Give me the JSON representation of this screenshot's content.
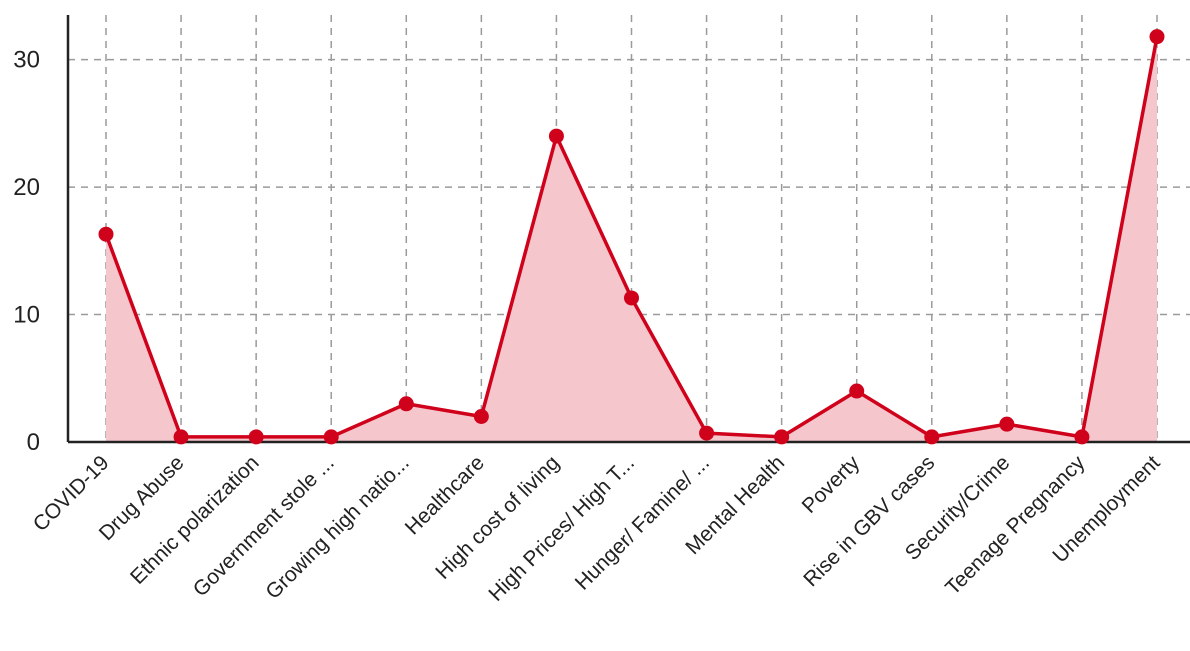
{
  "chart_data": {
    "type": "area",
    "categories": [
      "COVID-19",
      "Drug Abuse",
      "Ethnic polarization",
      "Government stole ...",
      "Growing high natio...",
      "Healthcare",
      "High cost of living",
      "High Prices/ High T...",
      "Hunger/ Famine/ ...",
      "Mental Health",
      "Poverty",
      "Rise in GBV cases",
      "Security/Crime",
      "Teenage Pregnancy",
      "Unemployment"
    ],
    "values": [
      16.3,
      0.4,
      0.4,
      0.4,
      3.0,
      2.0,
      24.0,
      11.3,
      0.7,
      0.4,
      4.0,
      0.4,
      1.4,
      0.4,
      31.8
    ],
    "ylim": [
      0,
      33.5
    ],
    "yticks": [
      "0",
      "10",
      "20",
      "30"
    ],
    "grid": true,
    "legend": "none",
    "colors": {
      "line": "#d0021b",
      "fill": "#f5c6cc",
      "grid": "#9a9a9a",
      "axis": "#222222"
    }
  }
}
